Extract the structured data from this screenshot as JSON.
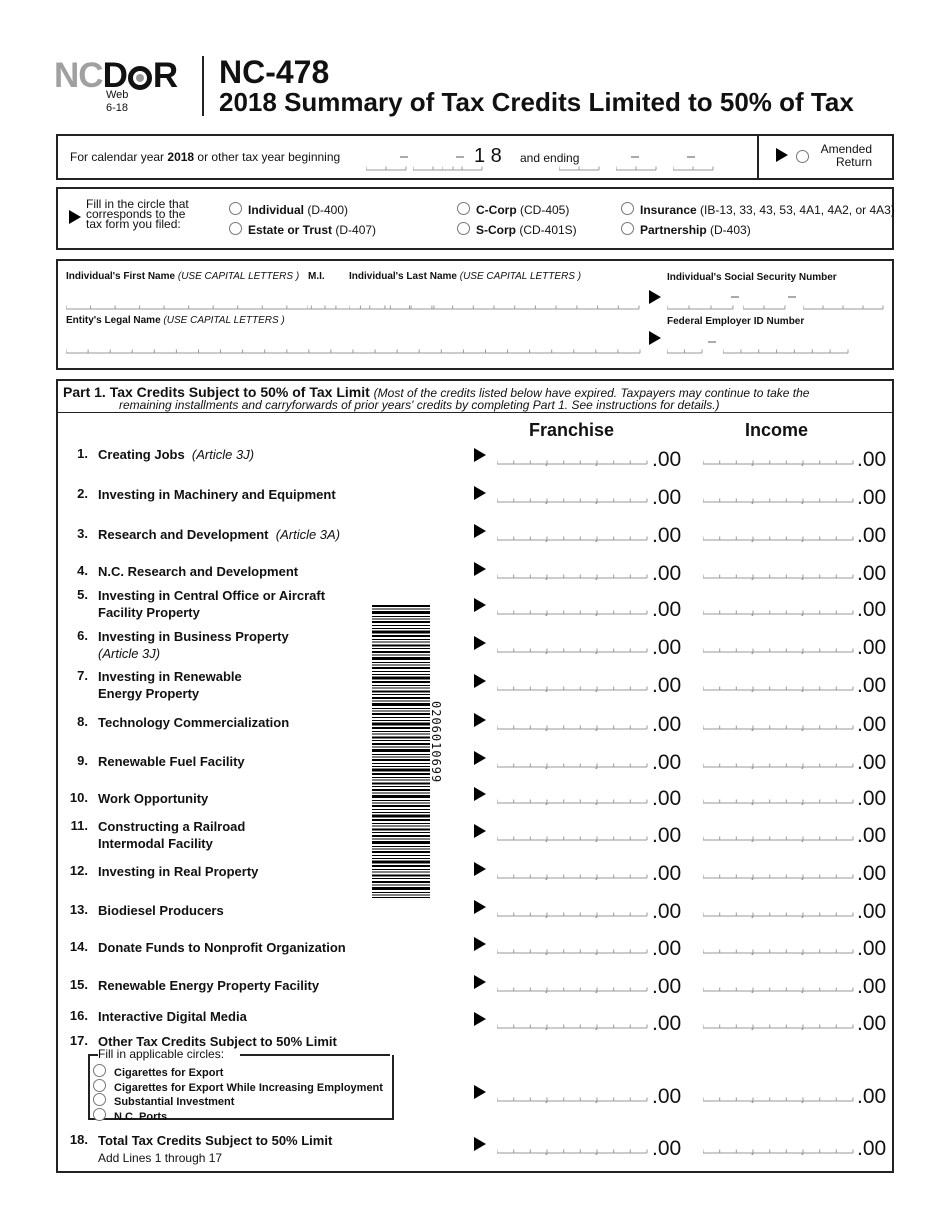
{
  "header": {
    "logo_nc": "NC",
    "logo_d": "D",
    "logo_r": "R",
    "logo_text": "NCDOR",
    "edition": "Web",
    "date": "6-18",
    "form_number": "NC-478",
    "title": "2018 Summary of Tax Credits Limited to 50% of Tax"
  },
  "tax_year": {
    "prefix": "For calendar year ",
    "year": "2018",
    "suffix": " or other tax year beginning",
    "year_digits": "1 8",
    "and_ending": "and ending",
    "amended": "Amended",
    "return": "Return"
  },
  "form_type": {
    "instruction_1": "Fill in the circle that",
    "instruction_2": "corresponds to the",
    "instruction_3": "tax form you filed:",
    "options": [
      {
        "bold": "Individual",
        "rest": " (D-400)"
      },
      {
        "bold": "Estate or Trust",
        "rest": " (D-407)"
      },
      {
        "bold": "C-Corp",
        "rest": " (CD-405)"
      },
      {
        "bold": "S-Corp",
        "rest": " (CD-401S)"
      },
      {
        "bold": "Insurance",
        "rest": " (IB-13, 33, 43, 53, 4A1, 4A2, or 4A3)"
      },
      {
        "bold": "Partnership",
        "rest": " (D-403)"
      }
    ]
  },
  "identity": {
    "first_name": "Individual's First Name",
    "caps": "(USE CAPITAL LETTERS )",
    "mi": "M.I.",
    "last_name": "Individual's Last Name",
    "ssn": "Individual's Social Security Number",
    "entity": "Entity's Legal Name",
    "fein": "Federal Employer ID Number"
  },
  "part1": {
    "title": "Part 1.  Tax Credits Subject to 50% of Tax Limit",
    "note1": "(Most of the credits listed below have expired.  Taxpayers may continue to take the",
    "note2": "remaining installments and carryforwards of prior years' credits by completing Part 1.  See instructions for details.)",
    "col_franchise": "Franchise",
    "col_income": "Income",
    "cents": ".00",
    "lines": [
      {
        "num": "1.",
        "label": "Creating Jobs",
        "note": "(Article 3J)"
      },
      {
        "num": "2.",
        "label": "Investing in Machinery and Equipment"
      },
      {
        "num": "3.",
        "label": "Research and Development",
        "note": "(Article 3A)"
      },
      {
        "num": "4.",
        "label": "N.C. Research and Development"
      },
      {
        "num": "5.",
        "label": "Investing in Central Office or Aircraft",
        "line2": "Facility Property"
      },
      {
        "num": "6.",
        "label": "Investing in Business Property",
        "line2i": "(Article 3J)"
      },
      {
        "num": "7.",
        "label": "Investing in Renewable",
        "line2": "Energy Property"
      },
      {
        "num": "8.",
        "label": "Technology Commercialization"
      },
      {
        "num": "9.",
        "label": "Renewable Fuel Facility"
      },
      {
        "num": "10.",
        "label": "Work Opportunity"
      },
      {
        "num": "11.",
        "label": "Constructing a Railroad",
        "line2": "Intermodal Facility"
      },
      {
        "num": "12.",
        "label": "Investing in Real Property"
      },
      {
        "num": "13.",
        "label": "Biodiesel Producers"
      },
      {
        "num": "14.",
        "label": "Donate Funds to Nonprofit Organization"
      },
      {
        "num": "15.",
        "label": "Renewable Energy Property Facility"
      },
      {
        "num": "16.",
        "label": "Interactive Digital Media"
      },
      {
        "num": "17.",
        "label": "Other Tax Credits Subject to 50% Limit"
      },
      {
        "num": "18.",
        "label": "Total Tax Credits Subject to 50% Limit",
        "line2n": "Add Lines 1 through 17"
      }
    ],
    "line17": {
      "fill_label": "Fill in applicable circles:",
      "options": [
        "Cigarettes for Export",
        "Cigarettes for Export While Increasing Employment",
        "Substantial Investment",
        "N.C. Ports"
      ]
    }
  },
  "barcode": {
    "number": "0206010699"
  }
}
